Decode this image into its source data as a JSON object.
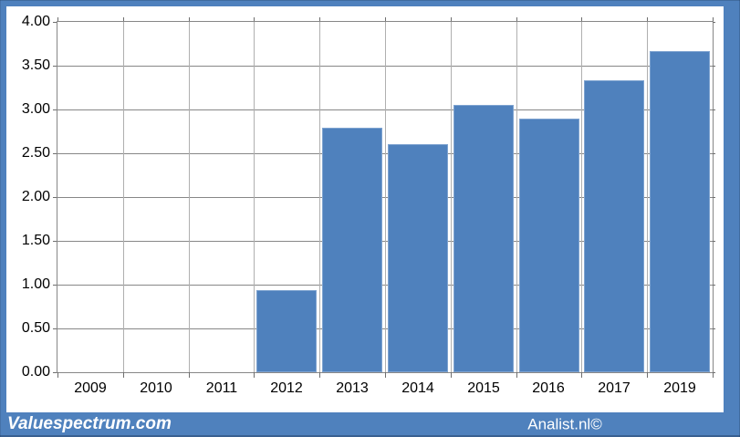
{
  "branding": {
    "left": "Valuespectrum.com",
    "right": "Analist.nl©"
  },
  "colors": {
    "bar": "#4F81BD",
    "bar_edge": "#7EA3D0",
    "frame": "#4F81BD",
    "grid_h": "#878787",
    "grid_v": "#AFAFAF",
    "tick": "#6E6E6E",
    "plot_border": "#878787",
    "label_text": "#000000",
    "strip_text": "#FFFFFF"
  },
  "chart_data": {
    "type": "bar",
    "title": "",
    "xlabel": "",
    "ylabel": "",
    "categories": [
      "2009",
      "2010",
      "2011",
      "2012",
      "2013",
      "2014",
      "2015",
      "2016",
      "2017",
      "2019"
    ],
    "values": [
      0,
      0,
      0,
      0.94,
      2.79,
      2.6,
      3.05,
      2.9,
      3.33,
      3.67
    ],
    "ylim": [
      0,
      4.0
    ],
    "ytick_step": 0.5,
    "ytick_labels": [
      "0.00",
      "0.50",
      "1.00",
      "1.50",
      "2.00",
      "2.50",
      "3.00",
      "3.50",
      "4.00"
    ],
    "grid": "both",
    "legend": "none",
    "bar_color": "#4F81BD"
  }
}
